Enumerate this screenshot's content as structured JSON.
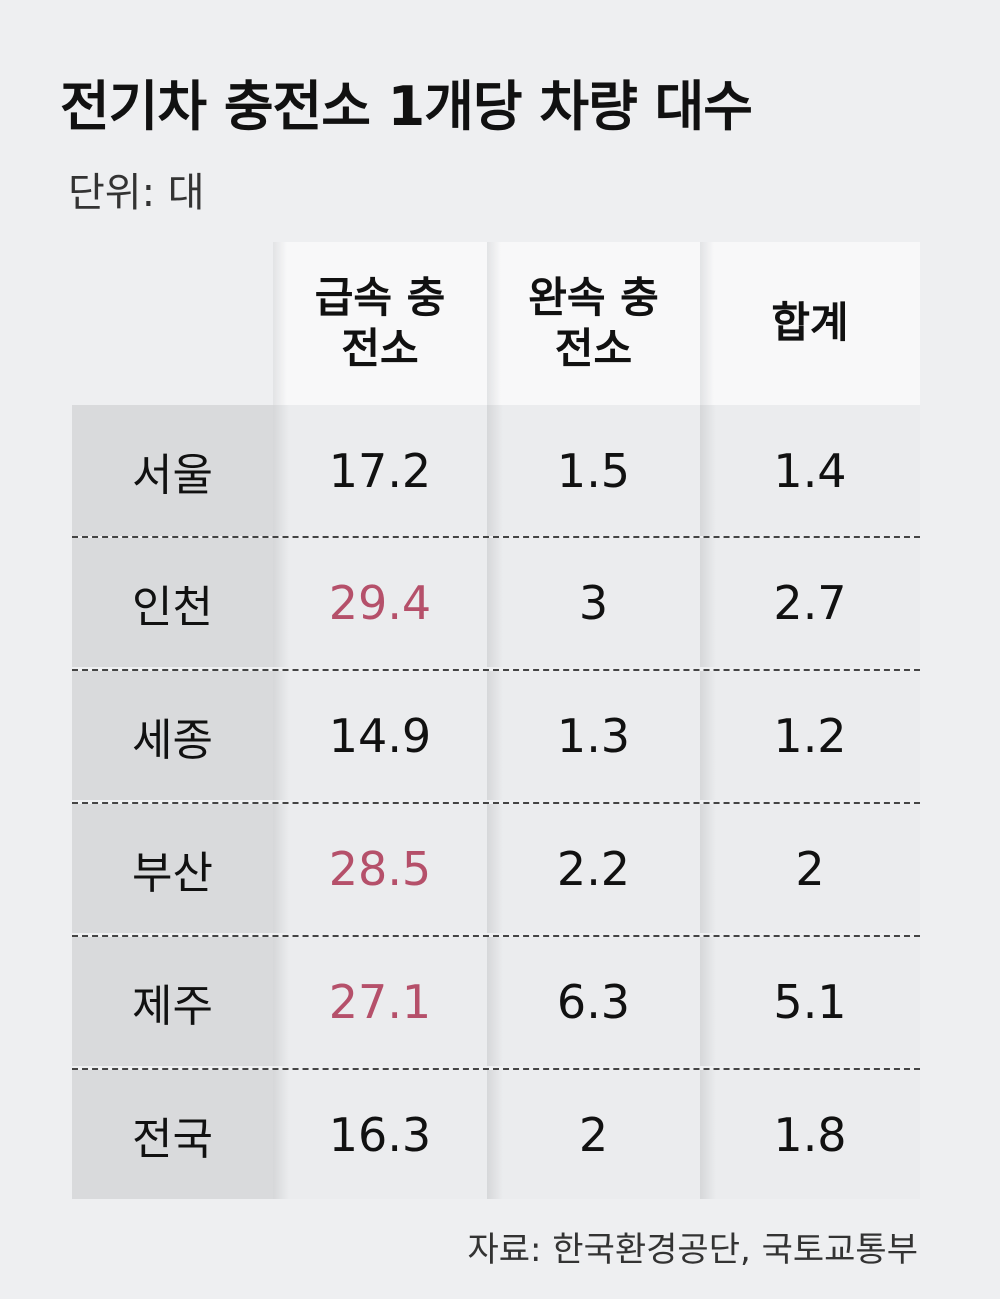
{
  "title": "전기차 충전소 1개당 차량 대수",
  "unit": "단위: 대",
  "source": "자료: 한국환경공단, 국토교통부",
  "colors": {
    "highlight": "#b5506a",
    "background": "#eeeff1",
    "label_column": "#d9dadc"
  },
  "chart_data": {
    "type": "table",
    "title": "전기차 충전소 1개당 차량 대수",
    "columns": [
      "급속 충전소",
      "완속 충전소",
      "합계"
    ],
    "rows": [
      {
        "region": "서울",
        "values": [
          "17.2",
          "1.5",
          "1.4"
        ],
        "highlight": [
          false,
          false,
          false
        ]
      },
      {
        "region": "인천",
        "values": [
          "29.4",
          "3",
          "2.7"
        ],
        "highlight": [
          true,
          false,
          false
        ]
      },
      {
        "region": "세종",
        "values": [
          "14.9",
          "1.3",
          "1.2"
        ],
        "highlight": [
          false,
          false,
          false
        ]
      },
      {
        "region": "부산",
        "values": [
          "28.5",
          "2.2",
          "2"
        ],
        "highlight": [
          true,
          false,
          false
        ]
      },
      {
        "region": "제주",
        "values": [
          "27.1",
          "6.3",
          "5.1"
        ],
        "highlight": [
          true,
          false,
          false
        ]
      },
      {
        "region": "전국",
        "values": [
          "16.3",
          "2",
          "1.8"
        ],
        "highlight": [
          false,
          false,
          false
        ]
      }
    ]
  }
}
